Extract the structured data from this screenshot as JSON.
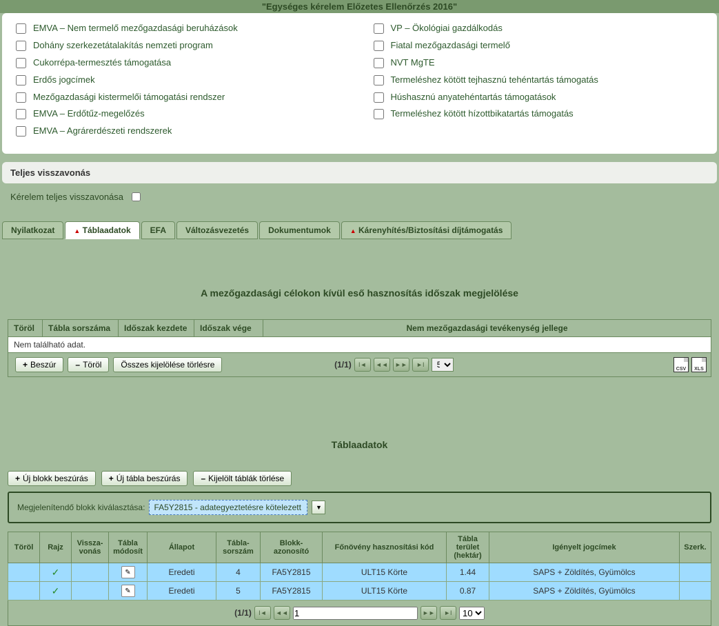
{
  "header": {
    "title": "\"Egységes kérelem Előzetes Ellenőrzés 2016\""
  },
  "checkboxes": {
    "left": [
      "EMVA – Nem termelő mezőgazdasági beruházások",
      "Dohány szerkezetátalakítás nemzeti program",
      "Cukorrépa-termesztés támogatása",
      "Erdős jogcímek",
      "Mezőgazdasági kistermelői támogatási rendszer",
      "EMVA – Erdőtűz-megelőzés",
      "EMVA – Agrárerdészeti rendszerek"
    ],
    "right": [
      "VP – Ökológiai gazdálkodás",
      "Fiatal mezőgazdasági termelő",
      "NVT MgTE",
      "Termeléshez kötött tejhasznú tehéntartás támogatás",
      "Húshasznú anyatehéntartás támogatások",
      "Termeléshez kötött hízottbikatartás támogatás"
    ]
  },
  "withdraw": {
    "header": "Teljes visszavonás",
    "label": "Kérelem teljes visszavonása"
  },
  "tabs": [
    {
      "label": "Nyilatkozat",
      "warn": false
    },
    {
      "label": "Táblaadatok",
      "warn": true
    },
    {
      "label": "EFA",
      "warn": false
    },
    {
      "label": "Változásvezetés",
      "warn": false
    },
    {
      "label": "Dokumentumok",
      "warn": false
    },
    {
      "label": "Kárenyhítés/Biztosítási díjtámogatás",
      "warn": true
    }
  ],
  "active_tab": 1,
  "section1": {
    "title": "A mezőgazdasági célokon kívül eső hasznosítás időszak megjelölése",
    "cols": [
      "Töröl",
      "Tábla sorszáma",
      "Időszak kezdete",
      "Időszak vége",
      "Nem mezőgazdasági tevékenység jellege"
    ],
    "no_data": "Nem található adat.",
    "buttons": {
      "insert": "Beszúr",
      "delete": "Töröl",
      "clear": "Összes kijelölése törlésre"
    },
    "pager": {
      "text": "(1/1)",
      "size": "5"
    }
  },
  "section2": {
    "title": "Táblaadatok",
    "buttons": {
      "newblock": "Új blokk beszúrás",
      "newtable": "Új tábla beszúrás",
      "delsel": "Kijelölt táblák törlése"
    },
    "filter": {
      "label": "Megjelenítendő blokk kiválasztása:",
      "value": "FA5Y2815 - adategyeztetésre kötelezett"
    },
    "cols": [
      "Töröl",
      "Rajz",
      "Vissza-\nvonás",
      "Tábla módosít",
      "Állapot",
      "Tábla-\nsorszám",
      "Blokk-\nazonosító",
      "Főnövény hasznosítási kód",
      "Tábla terület (hektár)",
      "Igényelt jogcímek",
      "Szerk."
    ],
    "rows": [
      {
        "status": "Eredeti",
        "num": "4",
        "block": "FA5Y2815",
        "crop": "ULT15 Körte",
        "area": "1.44",
        "titles": "SAPS + Zöldítés, Gyümölcs"
      },
      {
        "status": "Eredeti",
        "num": "5",
        "block": "FA5Y2815",
        "crop": "ULT15 Körte",
        "area": "0.87",
        "titles": "SAPS + Zöldítés, Gyümölcs"
      }
    ],
    "pager": {
      "text": "(1/1)",
      "page": "1",
      "size": "10"
    }
  },
  "export": {
    "csv": "CSV",
    "xls": "XLS"
  }
}
